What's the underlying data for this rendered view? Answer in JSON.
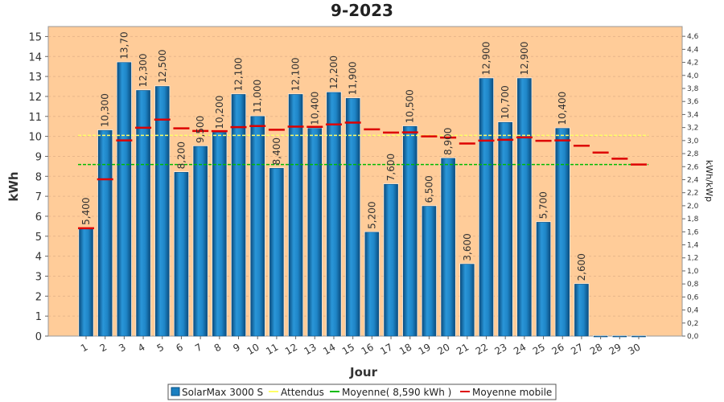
{
  "chart_data": {
    "type": "bar",
    "title": "9-2023",
    "xlabel": "Jour",
    "ylabel": "kWh",
    "ylabel_right": "kWh/kWp",
    "ylim": [
      0,
      15.5
    ],
    "ylim_right": [
      0,
      4.75
    ],
    "y_ticks": [
      0,
      1,
      2,
      3,
      4,
      5,
      6,
      7,
      8,
      9,
      10,
      11,
      12,
      13,
      14,
      15
    ],
    "y_ticks_right": [
      "0,0",
      "0,2",
      "0,4",
      "0,6",
      "0,8",
      "1,0",
      "1,2",
      "1,4",
      "1,6",
      "1,8",
      "2,0",
      "2,2",
      "2,4",
      "2,6",
      "2,8",
      "3,0",
      "3,2",
      "3,4",
      "3,6",
      "3,8",
      "4,0",
      "4,2",
      "4,4",
      "4,6"
    ],
    "categories": [
      "1",
      "2",
      "3",
      "4",
      "5",
      "6",
      "7",
      "8",
      "9",
      "10",
      "11",
      "12",
      "13",
      "14",
      "15",
      "16",
      "17",
      "18",
      "19",
      "20",
      "21",
      "22",
      "23",
      "24",
      "25",
      "26",
      "27",
      "28",
      "29",
      "30"
    ],
    "grid": true,
    "legend_position": "bottom",
    "background_color": "#ffcc99",
    "series": [
      {
        "name": "SolarMax 3000 S",
        "kind": "bar",
        "color": "#1a7fc0",
        "values": [
          5.4,
          10.3,
          13.7,
          12.3,
          12.5,
          8.2,
          9.5,
          10.2,
          12.1,
          11.0,
          8.4,
          12.1,
          10.4,
          12.2,
          11.9,
          5.2,
          7.6,
          10.5,
          6.5,
          8.9,
          3.6,
          12.9,
          10.7,
          12.9,
          5.7,
          10.4,
          2.6,
          0,
          0,
          0
        ],
        "labels": [
          "5,400",
          "10,300",
          "13,70",
          "12,300",
          "12,500",
          "8,200",
          "9,500",
          "10,200",
          "12,100",
          "11,000",
          "8,400",
          "12,100",
          "10,400",
          "12,200",
          "11,900",
          "5,200",
          "7,600",
          "10,500",
          "6,500",
          "8,900",
          "3,600",
          "12,900",
          "10,700",
          "12,900",
          "5,700",
          "10,400",
          "2,600",
          "",
          "",
          ""
        ]
      },
      {
        "name": "Attendus",
        "kind": "line",
        "color": "#ffff66",
        "value": 10.05
      },
      {
        "name": "Moyenne( 8,590 kWh )",
        "kind": "line",
        "color": "#00bb00",
        "value": 8.59
      },
      {
        "name": "Moyenne mobile",
        "kind": "marker",
        "color": "#dd0000",
        "values": [
          5.4,
          7.85,
          9.8,
          10.43,
          10.84,
          10.4,
          10.27,
          10.26,
          10.46,
          10.52,
          10.33,
          10.49,
          10.48,
          10.6,
          10.69,
          10.35,
          10.19,
          10.2,
          10.0,
          9.94,
          9.64,
          9.79,
          9.83,
          9.95,
          9.78,
          9.8,
          9.53,
          9.19,
          8.88,
          8.59
        ]
      }
    ]
  },
  "legend": [
    {
      "label": "SolarMax 3000 S",
      "color": "#1a7fc0",
      "kind": "box"
    },
    {
      "label": "Attendus",
      "color": "#ffff66",
      "kind": "line"
    },
    {
      "label": "Moyenne( 8,590 kWh )",
      "color": "#00bb00",
      "kind": "line"
    },
    {
      "label": "Moyenne mobile",
      "color": "#dd0000",
      "kind": "line"
    }
  ]
}
